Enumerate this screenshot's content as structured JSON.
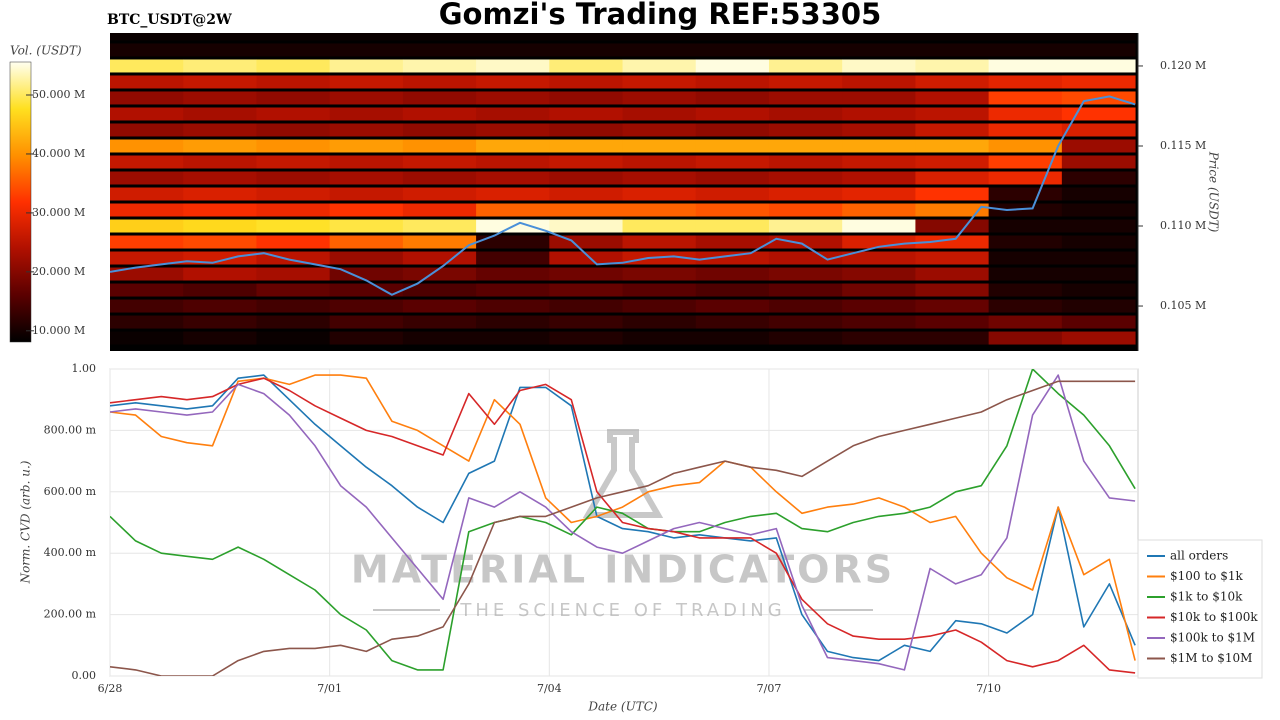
{
  "header": {
    "title": "Gomzi's Trading REF:53305",
    "symbol": "BTC_USDT@2W"
  },
  "watermark": {
    "brand": "MATERIAL INDICATORS",
    "tagline": "THE SCIENCE OF TRADING"
  },
  "chart_data": [
    {
      "type": "heatmap",
      "ylabel": "Price (USDT)",
      "xlim": [
        0,
        14.04
      ],
      "ylim": [
        102190,
        122060
      ],
      "yticks": [
        {
          "value": 105000,
          "label": "0.105 M"
        },
        {
          "value": 110000,
          "label": "0.110 M"
        },
        {
          "value": 115000,
          "label": "0.115 M"
        },
        {
          "value": 120000,
          "label": "0.120 M"
        }
      ],
      "x_bins": [
        0,
        1,
        2,
        3,
        4,
        5,
        6,
        7,
        8,
        9,
        10,
        11,
        12,
        13,
        14
      ],
      "y_bins": [
        102500,
        103500,
        104500,
        105500,
        106500,
        107500,
        108500,
        109500,
        110500,
        111500,
        112500,
        113500,
        114500,
        115500,
        116500,
        117500,
        118500,
        119500,
        120500,
        121500,
        122500
      ],
      "z": [
        [
          9000000,
          10000000,
          9000000,
          11000000,
          10000000,
          10000000,
          11000000,
          10000000,
          10000000,
          11000000,
          12000000,
          12000000,
          20000000,
          22000000
        ],
        [
          12000000,
          13000000,
          12000000,
          14000000,
          13000000,
          12000000,
          13000000,
          12000000,
          13000000,
          14000000,
          15000000,
          16000000,
          18000000,
          16000000
        ],
        [
          14000000,
          15000000,
          14000000,
          15000000,
          16000000,
          15000000,
          14000000,
          15000000,
          16000000,
          15000000,
          16000000,
          17000000,
          12000000,
          11000000
        ],
        [
          16000000,
          15000000,
          17000000,
          16000000,
          15000000,
          16000000,
          17000000,
          16000000,
          15000000,
          16000000,
          18000000,
          20000000,
          11000000,
          10000000
        ],
        [
          22000000,
          24000000,
          23000000,
          18000000,
          19000000,
          17000000,
          18000000,
          19000000,
          18000000,
          19000000,
          20000000,
          22000000,
          10000000,
          10000000
        ],
        [
          26000000,
          27000000,
          25000000,
          22000000,
          24000000,
          14000000,
          24000000,
          26000000,
          25000000,
          24000000,
          25000000,
          26000000,
          10000000,
          10000000
        ],
        [
          33000000,
          34000000,
          32000000,
          36000000,
          38000000,
          12000000,
          22000000,
          25000000,
          23000000,
          24000000,
          28000000,
          30000000,
          11000000,
          10000000
        ],
        [
          46000000,
          47000000,
          48000000,
          49000000,
          50000000,
          55000000,
          54000000,
          50000000,
          50000000,
          52000000,
          55000000,
          20000000,
          10000000,
          10000000
        ],
        [
          30000000,
          31000000,
          30000000,
          32000000,
          30000000,
          36000000,
          36000000,
          36000000,
          35000000,
          34000000,
          36000000,
          38000000,
          11000000,
          10000000
        ],
        [
          27000000,
          28000000,
          27000000,
          26000000,
          27000000,
          28000000,
          27000000,
          28000000,
          27000000,
          28000000,
          29000000,
          32000000,
          12000000,
          10000000
        ],
        [
          22000000,
          23000000,
          22000000,
          23000000,
          22000000,
          23000000,
          22000000,
          23000000,
          22000000,
          23000000,
          24000000,
          28000000,
          30000000,
          12000000
        ],
        [
          26000000,
          25000000,
          26000000,
          25000000,
          26000000,
          25000000,
          26000000,
          25000000,
          26000000,
          25000000,
          26000000,
          27000000,
          33000000,
          22000000
        ],
        [
          40000000,
          41000000,
          40000000,
          41000000,
          40000000,
          42000000,
          42000000,
          42000000,
          42000000,
          42000000,
          42000000,
          42000000,
          40000000,
          22000000
        ],
        [
          21000000,
          22000000,
          21000000,
          22000000,
          21000000,
          22000000,
          21000000,
          22000000,
          21000000,
          22000000,
          23000000,
          26000000,
          30000000,
          28000000
        ],
        [
          24000000,
          23000000,
          24000000,
          23000000,
          24000000,
          23000000,
          24000000,
          23000000,
          24000000,
          23000000,
          24000000,
          25000000,
          30000000,
          32000000
        ],
        [
          21000000,
          22000000,
          21000000,
          22000000,
          21000000,
          22000000,
          21000000,
          22000000,
          21000000,
          22000000,
          22000000,
          24000000,
          33000000,
          34000000
        ],
        [
          25000000,
          26000000,
          25000000,
          26000000,
          25000000,
          26000000,
          25000000,
          26000000,
          25000000,
          26000000,
          25000000,
          27000000,
          29000000,
          30000000
        ],
        [
          50000000,
          51000000,
          50000000,
          52000000,
          53000000,
          54000000,
          51000000,
          53000000,
          55000000,
          52000000,
          54000000,
          53000000,
          55000000,
          55000000
        ],
        [
          10000000,
          10000000,
          10000000,
          10000000,
          10000000,
          10000000,
          10000000,
          10000000,
          10000000,
          10000000,
          10000000,
          10000000,
          10000000,
          10000000
        ],
        [
          9000000,
          9000000,
          9000000,
          9000000,
          9000000,
          9000000,
          9000000,
          9000000,
          9000000,
          9000000,
          9000000,
          9000000,
          9000000,
          9000000
        ]
      ],
      "colorscale": [
        "#000000",
        "#5a0000",
        "#b01000",
        "#ff3000",
        "#ff9000",
        "#ffe020",
        "#fffff0"
      ],
      "colorbar": {
        "label": "Vol. (USDT)",
        "lim": [
          8100000,
          55600000
        ],
        "ticks": [
          {
            "value": 10000000,
            "label": "10.000 M"
          },
          {
            "value": 20000000,
            "label": "20.000 M"
          },
          {
            "value": 30000000,
            "label": "30.000 M"
          },
          {
            "value": 40000000,
            "label": "40.000 M"
          },
          {
            "value": 50000000,
            "label": "50.000 M"
          }
        ]
      },
      "line": {
        "color": "#4a90d9",
        "x": [
          0,
          0.35,
          0.7,
          1.05,
          1.4,
          1.75,
          2.1,
          2.45,
          2.8,
          3.15,
          3.5,
          3.85,
          4.2,
          4.55,
          4.9,
          5.25,
          5.6,
          5.95,
          6.3,
          6.65,
          7,
          7.35,
          7.7,
          8.05,
          8.4,
          8.75,
          9.1,
          9.45,
          9.8,
          10.15,
          10.5,
          10.85,
          11.2,
          11.55,
          11.9,
          12.25,
          12.6,
          12.95,
          13.3,
          13.65,
          14
        ],
        "values": [
          107130,
          107400,
          107600,
          107800,
          107700,
          108100,
          108300,
          107900,
          107600,
          107300,
          106600,
          105700,
          106400,
          107500,
          108800,
          109400,
          110200,
          109700,
          109100,
          107600,
          107700,
          108000,
          108100,
          107900,
          108100,
          108300,
          109200,
          108900,
          107900,
          108300,
          108700,
          108900,
          109000,
          109200,
          111200,
          111000,
          111100,
          115000,
          117800,
          118100,
          117600
        ]
      }
    },
    {
      "type": "line",
      "xlabel": "Date (UTC)",
      "ylabel": "Norm. CVD (arb. u.)",
      "xlim": [
        0,
        14.04
      ],
      "ylim": [
        0,
        1
      ],
      "grid": true,
      "legend": "right",
      "xticks": [
        {
          "value": 0,
          "label": "6/28"
        },
        {
          "value": 3,
          "label": "7/01"
        },
        {
          "value": 6,
          "label": "7/04"
        },
        {
          "value": 9,
          "label": "7/07"
        },
        {
          "value": 12,
          "label": "7/10"
        }
      ],
      "yticks": [
        {
          "value": 0,
          "label": "0.00"
        },
        {
          "value": 0.2,
          "label": "200.00 m"
        },
        {
          "value": 0.4,
          "label": "400.00 m"
        },
        {
          "value": 0.6,
          "label": "600.00 m"
        },
        {
          "value": 0.8,
          "label": "800.00 m"
        },
        {
          "value": 1,
          "label": "1.00"
        }
      ],
      "x": [
        0,
        0.35,
        0.7,
        1.05,
        1.4,
        1.75,
        2.1,
        2.45,
        2.8,
        3.15,
        3.5,
        3.85,
        4.2,
        4.55,
        4.9,
        5.25,
        5.6,
        5.95,
        6.3,
        6.65,
        7,
        7.35,
        7.7,
        8.05,
        8.4,
        8.75,
        9.1,
        9.45,
        9.8,
        10.15,
        10.5,
        10.85,
        11.2,
        11.55,
        11.9,
        12.25,
        12.6,
        12.95,
        13.3,
        13.65,
        14
      ],
      "series": [
        {
          "name": "all orders",
          "color": "#1f77b4",
          "values": [
            0.88,
            0.89,
            0.88,
            0.87,
            0.88,
            0.97,
            0.98,
            0.9,
            0.82,
            0.75,
            0.68,
            0.62,
            0.55,
            0.5,
            0.66,
            0.7,
            0.94,
            0.94,
            0.88,
            0.52,
            0.48,
            0.47,
            0.45,
            0.46,
            0.45,
            0.44,
            0.45,
            0.2,
            0.08,
            0.06,
            0.05,
            0.1,
            0.08,
            0.18,
            0.17,
            0.14,
            0.2,
            0.55,
            0.16,
            0.3,
            0.1
          ]
        },
        {
          "name": "$100 to $1k",
          "color": "#ff7f0e",
          "values": [
            0.86,
            0.85,
            0.78,
            0.76,
            0.75,
            0.96,
            0.97,
            0.95,
            0.98,
            0.98,
            0.97,
            0.83,
            0.8,
            0.75,
            0.7,
            0.9,
            0.82,
            0.58,
            0.5,
            0.52,
            0.55,
            0.6,
            0.62,
            0.63,
            0.7,
            0.68,
            0.6,
            0.53,
            0.55,
            0.56,
            0.58,
            0.55,
            0.5,
            0.52,
            0.4,
            0.32,
            0.28,
            0.55,
            0.33,
            0.38,
            0.05
          ]
        },
        {
          "name": "$1k to $10k",
          "color": "#2ca02c",
          "values": [
            0.52,
            0.44,
            0.4,
            0.39,
            0.38,
            0.42,
            0.38,
            0.33,
            0.28,
            0.2,
            0.15,
            0.05,
            0.02,
            0.02,
            0.47,
            0.5,
            0.52,
            0.5,
            0.46,
            0.55,
            0.53,
            0.48,
            0.47,
            0.47,
            0.5,
            0.52,
            0.53,
            0.48,
            0.47,
            0.5,
            0.52,
            0.53,
            0.55,
            0.6,
            0.62,
            0.75,
            1,
            0.92,
            0.85,
            0.75,
            0.61
          ]
        },
        {
          "name": "$10k to $100k",
          "color": "#d62728",
          "values": [
            0.89,
            0.9,
            0.91,
            0.9,
            0.91,
            0.95,
            0.97,
            0.93,
            0.88,
            0.84,
            0.8,
            0.78,
            0.75,
            0.72,
            0.92,
            0.82,
            0.93,
            0.95,
            0.9,
            0.6,
            0.5,
            0.48,
            0.47,
            0.45,
            0.45,
            0.45,
            0.4,
            0.25,
            0.17,
            0.13,
            0.12,
            0.12,
            0.13,
            0.15,
            0.11,
            0.05,
            0.03,
            0.05,
            0.1,
            0.02,
            0.01
          ]
        },
        {
          "name": "$100k to $1M",
          "color": "#9467bd",
          "values": [
            0.86,
            0.87,
            0.86,
            0.85,
            0.86,
            0.95,
            0.92,
            0.85,
            0.75,
            0.62,
            0.55,
            0.45,
            0.35,
            0.25,
            0.58,
            0.55,
            0.6,
            0.55,
            0.47,
            0.42,
            0.4,
            0.44,
            0.48,
            0.5,
            0.48,
            0.46,
            0.48,
            0.23,
            0.06,
            0.05,
            0.04,
            0.02,
            0.35,
            0.3,
            0.33,
            0.45,
            0.85,
            0.98,
            0.7,
            0.58,
            0.57
          ]
        },
        {
          "name": "$1M to $10M",
          "color": "#8c564b",
          "values": [
            0.03,
            0.02,
            0,
            0,
            0,
            0.05,
            0.08,
            0.09,
            0.09,
            0.1,
            0.08,
            0.12,
            0.13,
            0.16,
            0.3,
            0.5,
            0.52,
            0.52,
            0.55,
            0.58,
            0.6,
            0.62,
            0.66,
            0.68,
            0.7,
            0.68,
            0.67,
            0.65,
            0.7,
            0.75,
            0.78,
            0.8,
            0.82,
            0.84,
            0.86,
            0.9,
            0.93,
            0.96,
            0.96,
            0.96,
            0.96
          ]
        }
      ]
    }
  ]
}
